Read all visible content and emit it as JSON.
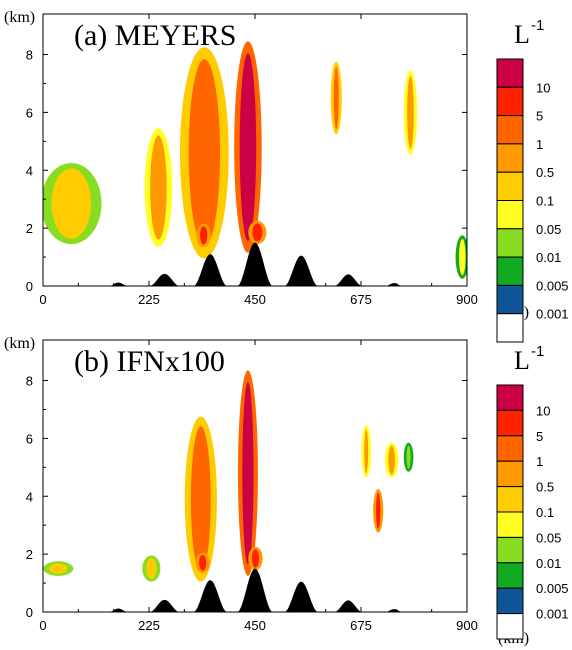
{
  "chart_data": [
    {
      "type": "heatmap",
      "title": "(a) MEYERS",
      "xlabel": "(km)",
      "ylabel": "(km)",
      "xlim": [
        0,
        900
      ],
      "ylim": [
        0,
        9.4
      ],
      "x_ticks": [
        0,
        225,
        450,
        675,
        900
      ],
      "y_ticks": [
        0,
        2,
        4,
        6,
        8
      ],
      "colorbar": {
        "unit": "L",
        "unit_exponent": "-1",
        "levels": [
          "10",
          "5",
          "1",
          "0.5",
          "0.1",
          "0.05",
          "0.01",
          "0.005",
          "0.001"
        ],
        "colors": [
          "#cc0044",
          "#ff2200",
          "#ff6600",
          "#ff9900",
          "#ffcc00",
          "#ffff22",
          "#88dd22",
          "#11aa22",
          "#115599",
          "#ffffff"
        ]
      },
      "terrain": [
        {
          "center": 160,
          "height": 0.12,
          "width": 20
        },
        {
          "center": 258,
          "height": 0.42,
          "width": 32
        },
        {
          "center": 355,
          "height": 1.1,
          "width": 36
        },
        {
          "center": 450,
          "height": 1.5,
          "width": 38
        },
        {
          "center": 548,
          "height": 1.05,
          "width": 36
        },
        {
          "center": 648,
          "height": 0.4,
          "width": 30
        },
        {
          "center": 745,
          "height": 0.1,
          "width": 18
        }
      ],
      "regions": [
        {
          "x": [
            0,
            120
          ],
          "y": [
            1.5,
            4.2
          ],
          "value_level": "0.1"
        },
        {
          "x": [
            220,
            270
          ],
          "y": [
            1.4,
            5.4
          ],
          "value_level": "0.5"
        },
        {
          "x": [
            295,
            390
          ],
          "y": [
            1.0,
            8.2
          ],
          "value_level": "1"
        },
        {
          "x": [
            330,
            352
          ],
          "y": [
            1.4,
            2.1
          ],
          "value_level": "5"
        },
        {
          "x": [
            410,
            460
          ],
          "y": [
            1.2,
            8.4
          ],
          "value_level": "10"
        },
        {
          "x": [
            440,
            470
          ],
          "y": [
            1.5,
            2.2
          ],
          "value_level": "5"
        },
        {
          "x": [
            770,
            790
          ],
          "y": [
            4.6,
            7.4
          ],
          "value_level": "0.5"
        },
        {
          "x": [
            615,
            630
          ],
          "y": [
            5.3,
            7.7
          ],
          "value_level": "1"
        },
        {
          "x": [
            880,
            900
          ],
          "y": [
            0.3,
            1.7
          ],
          "value_level": "0.05"
        }
      ]
    },
    {
      "type": "heatmap",
      "title": "(b) IFNx100",
      "xlabel": "(km)",
      "ylabel": "(km)",
      "xlim": [
        0,
        900
      ],
      "ylim": [
        0,
        9.4
      ],
      "x_ticks": [
        0,
        225,
        450,
        675,
        900
      ],
      "y_ticks": [
        0,
        2,
        4,
        6,
        8
      ],
      "colorbar": {
        "unit": "L",
        "unit_exponent": "-1",
        "levels": [
          "10",
          "5",
          "1",
          "0.5",
          "0.1",
          "0.05",
          "0.01",
          "0.005",
          "0.001"
        ],
        "colors": [
          "#cc0044",
          "#ff2200",
          "#ff6600",
          "#ff9900",
          "#ffcc00",
          "#ffff22",
          "#88dd22",
          "#11aa22",
          "#115599",
          "#ffffff"
        ]
      },
      "terrain": [
        {
          "center": 160,
          "height": 0.12,
          "width": 20
        },
        {
          "center": 258,
          "height": 0.42,
          "width": 32
        },
        {
          "center": 355,
          "height": 1.1,
          "width": 36
        },
        {
          "center": 450,
          "height": 1.5,
          "width": 38
        },
        {
          "center": 548,
          "height": 1.05,
          "width": 36
        },
        {
          "center": 648,
          "height": 0.4,
          "width": 30
        },
        {
          "center": 745,
          "height": 0.1,
          "width": 18
        }
      ],
      "regions": [
        {
          "x": [
            5,
            60
          ],
          "y": [
            1.3,
            1.7
          ],
          "value_level": "0.1"
        },
        {
          "x": [
            215,
            245
          ],
          "y": [
            1.1,
            1.9
          ],
          "value_level": "0.1"
        },
        {
          "x": [
            305,
            365
          ],
          "y": [
            1.1,
            6.7
          ],
          "value_level": "1"
        },
        {
          "x": [
            328,
            350
          ],
          "y": [
            1.4,
            2.0
          ],
          "value_level": "5"
        },
        {
          "x": [
            418,
            452
          ],
          "y": [
            1.3,
            8.3
          ],
          "value_level": "10"
        },
        {
          "x": [
            440,
            462
          ],
          "y": [
            1.5,
            2.2
          ],
          "value_level": "5"
        },
        {
          "x": [
            680,
            692
          ],
          "y": [
            4.7,
            6.4
          ],
          "value_level": "0.5"
        },
        {
          "x": [
            705,
            718
          ],
          "y": [
            2.8,
            4.2
          ],
          "value_level": "5"
        },
        {
          "x": [
            730,
            750
          ],
          "y": [
            4.7,
            5.8
          ],
          "value_level": "0.5"
        },
        {
          "x": [
            770,
            782
          ],
          "y": [
            4.9,
            5.8
          ],
          "value_level": "0.01"
        }
      ]
    }
  ]
}
